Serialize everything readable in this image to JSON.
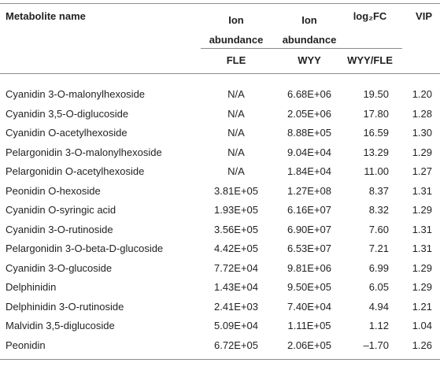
{
  "table": {
    "header": [
      "Metabolite name",
      "Ion abundance",
      "Ion abundance",
      "log₂FC",
      "VIP"
    ],
    "subheader": [
      "FLE",
      "WYY",
      "WYY/FLE"
    ],
    "rows": [
      [
        "Cyanidin 3-O-malonylhexoside",
        "N/A",
        "6.68E+06",
        "19.50",
        "1.20"
      ],
      [
        "Cyanidin 3,5-O-diglucoside",
        "N/A",
        "2.05E+06",
        "17.80",
        "1.28"
      ],
      [
        "Cyanidin O-acetylhexoside",
        "N/A",
        "8.88E+05",
        "16.59",
        "1.30"
      ],
      [
        "Pelargonidin 3-O-malonylhexoside",
        "N/A",
        "9.04E+04",
        "13.29",
        "1.29"
      ],
      [
        "Pelargonidin O-acetylhexoside",
        "N/A",
        "1.84E+04",
        "11.00",
        "1.27"
      ],
      [
        "Peonidin O-hexoside",
        "3.81E+05",
        "1.27E+08",
        "8.37",
        "1.31"
      ],
      [
        "Cyanidin O-syringic acid",
        "1.93E+05",
        "6.16E+07",
        "8.32",
        "1.29"
      ],
      [
        "Cyanidin 3-O-rutinoside",
        "3.56E+05",
        "6.90E+07",
        "7.60",
        "1.31"
      ],
      [
        "Pelargonidin 3-O-beta-D-glucoside",
        "4.42E+05",
        "6.53E+07",
        "7.21",
        "1.31"
      ],
      [
        "Cyanidin 3-O-glucoside",
        "7.72E+04",
        "9.81E+06",
        "6.99",
        "1.29"
      ],
      [
        "Delphinidin",
        "1.43E+04",
        "9.50E+05",
        "6.05",
        "1.29"
      ],
      [
        "Delphinidin 3-O-rutinoside",
        "2.41E+03",
        "7.40E+04",
        "4.94",
        "1.21"
      ],
      [
        "Malvidin 3,5-diglucoside",
        "5.09E+04",
        "1.11E+05",
        "1.12",
        "1.04"
      ],
      [
        "Peonidin",
        "6.72E+05",
        "2.06E+05",
        "–1.70",
        "1.26"
      ]
    ]
  }
}
